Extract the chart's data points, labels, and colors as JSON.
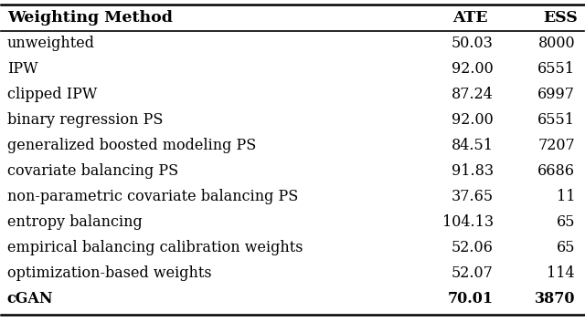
{
  "headers": [
    "Weighting Method",
    "ATE",
    "ESS"
  ],
  "rows": [
    [
      "unweighted",
      "50.03",
      "8000"
    ],
    [
      "IPW",
      "92.00",
      "6551"
    ],
    [
      "clipped IPW",
      "87.24",
      "6997"
    ],
    [
      "binary regression PS",
      "92.00",
      "6551"
    ],
    [
      "generalized boosted modeling PS",
      "84.51",
      "7207"
    ],
    [
      "covariate balancing PS",
      "91.83",
      "6686"
    ],
    [
      "non-parametric covariate balancing PS",
      "37.65",
      "11"
    ],
    [
      "entropy balancing",
      "104.13",
      "65"
    ],
    [
      "empirical balancing calibration weights",
      "52.06",
      "65"
    ],
    [
      "optimization-based weights",
      "52.07",
      "114"
    ],
    [
      "cGAN",
      "70.01",
      "3870"
    ]
  ],
  "last_row_bold": true,
  "header_bold": true,
  "bg_color": "#ffffff",
  "text_color": "#000000",
  "font_size": 11.5,
  "header_font_size": 12.5,
  "figsize": [
    6.4,
    3.53
  ]
}
